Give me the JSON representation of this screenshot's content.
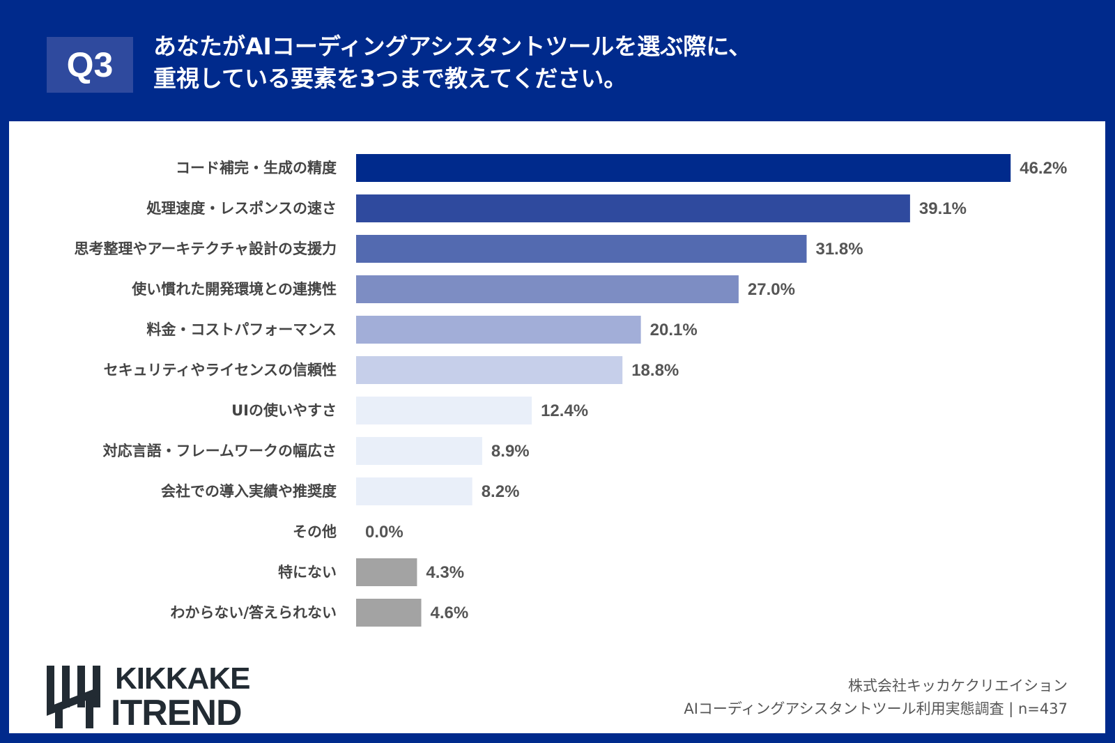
{
  "header": {
    "badge": "Q3",
    "title_line1": "あなたがAIコーディングアシスタントツールを選ぶ際に、",
    "title_line2": "重視している要素を3つまで教えてください。"
  },
  "chart_data": {
    "type": "bar",
    "orientation": "horizontal",
    "categories": [
      "コード補完・生成の精度",
      "処理速度・レスポンスの速さ",
      "思考整理やアーキテクチャ設計の支援力",
      "使い慣れた開発環境との連携性",
      "料金・コストパフォーマンス",
      "セキュリティやライセンスの信頼性",
      "UIの使いやすさ",
      "対応言語・フレームワークの幅広さ",
      "会社での導入実績や推奨度",
      "その他",
      "特にない",
      "わからない/答えられない"
    ],
    "values": [
      46.2,
      39.1,
      31.8,
      27.0,
      20.1,
      18.8,
      12.4,
      8.9,
      8.2,
      0.0,
      4.3,
      4.6
    ],
    "value_labels": [
      "46.2%",
      "39.1%",
      "31.8%",
      "27.0%",
      "20.1%",
      "18.8%",
      "12.4%",
      "8.9%",
      "8.2%",
      "0.0%",
      "4.3%",
      "4.6%"
    ],
    "colors": [
      "#002a8c",
      "#2f4a9e",
      "#536ab0",
      "#7d8dc3",
      "#a2aed8",
      "#c6cfea",
      "#e9eff9",
      "#e9eff9",
      "#e9eff9",
      "#e9eff9",
      "#a3a3a3",
      "#a3a3a3"
    ],
    "grid": false
  },
  "footer": {
    "logo_line1": "KIKKAKE",
    "logo_line2": "TREND",
    "company": "株式会社キッカケクリエイション",
    "survey": "AIコーディングアシスタントツール利用実態調査 | n=437"
  }
}
